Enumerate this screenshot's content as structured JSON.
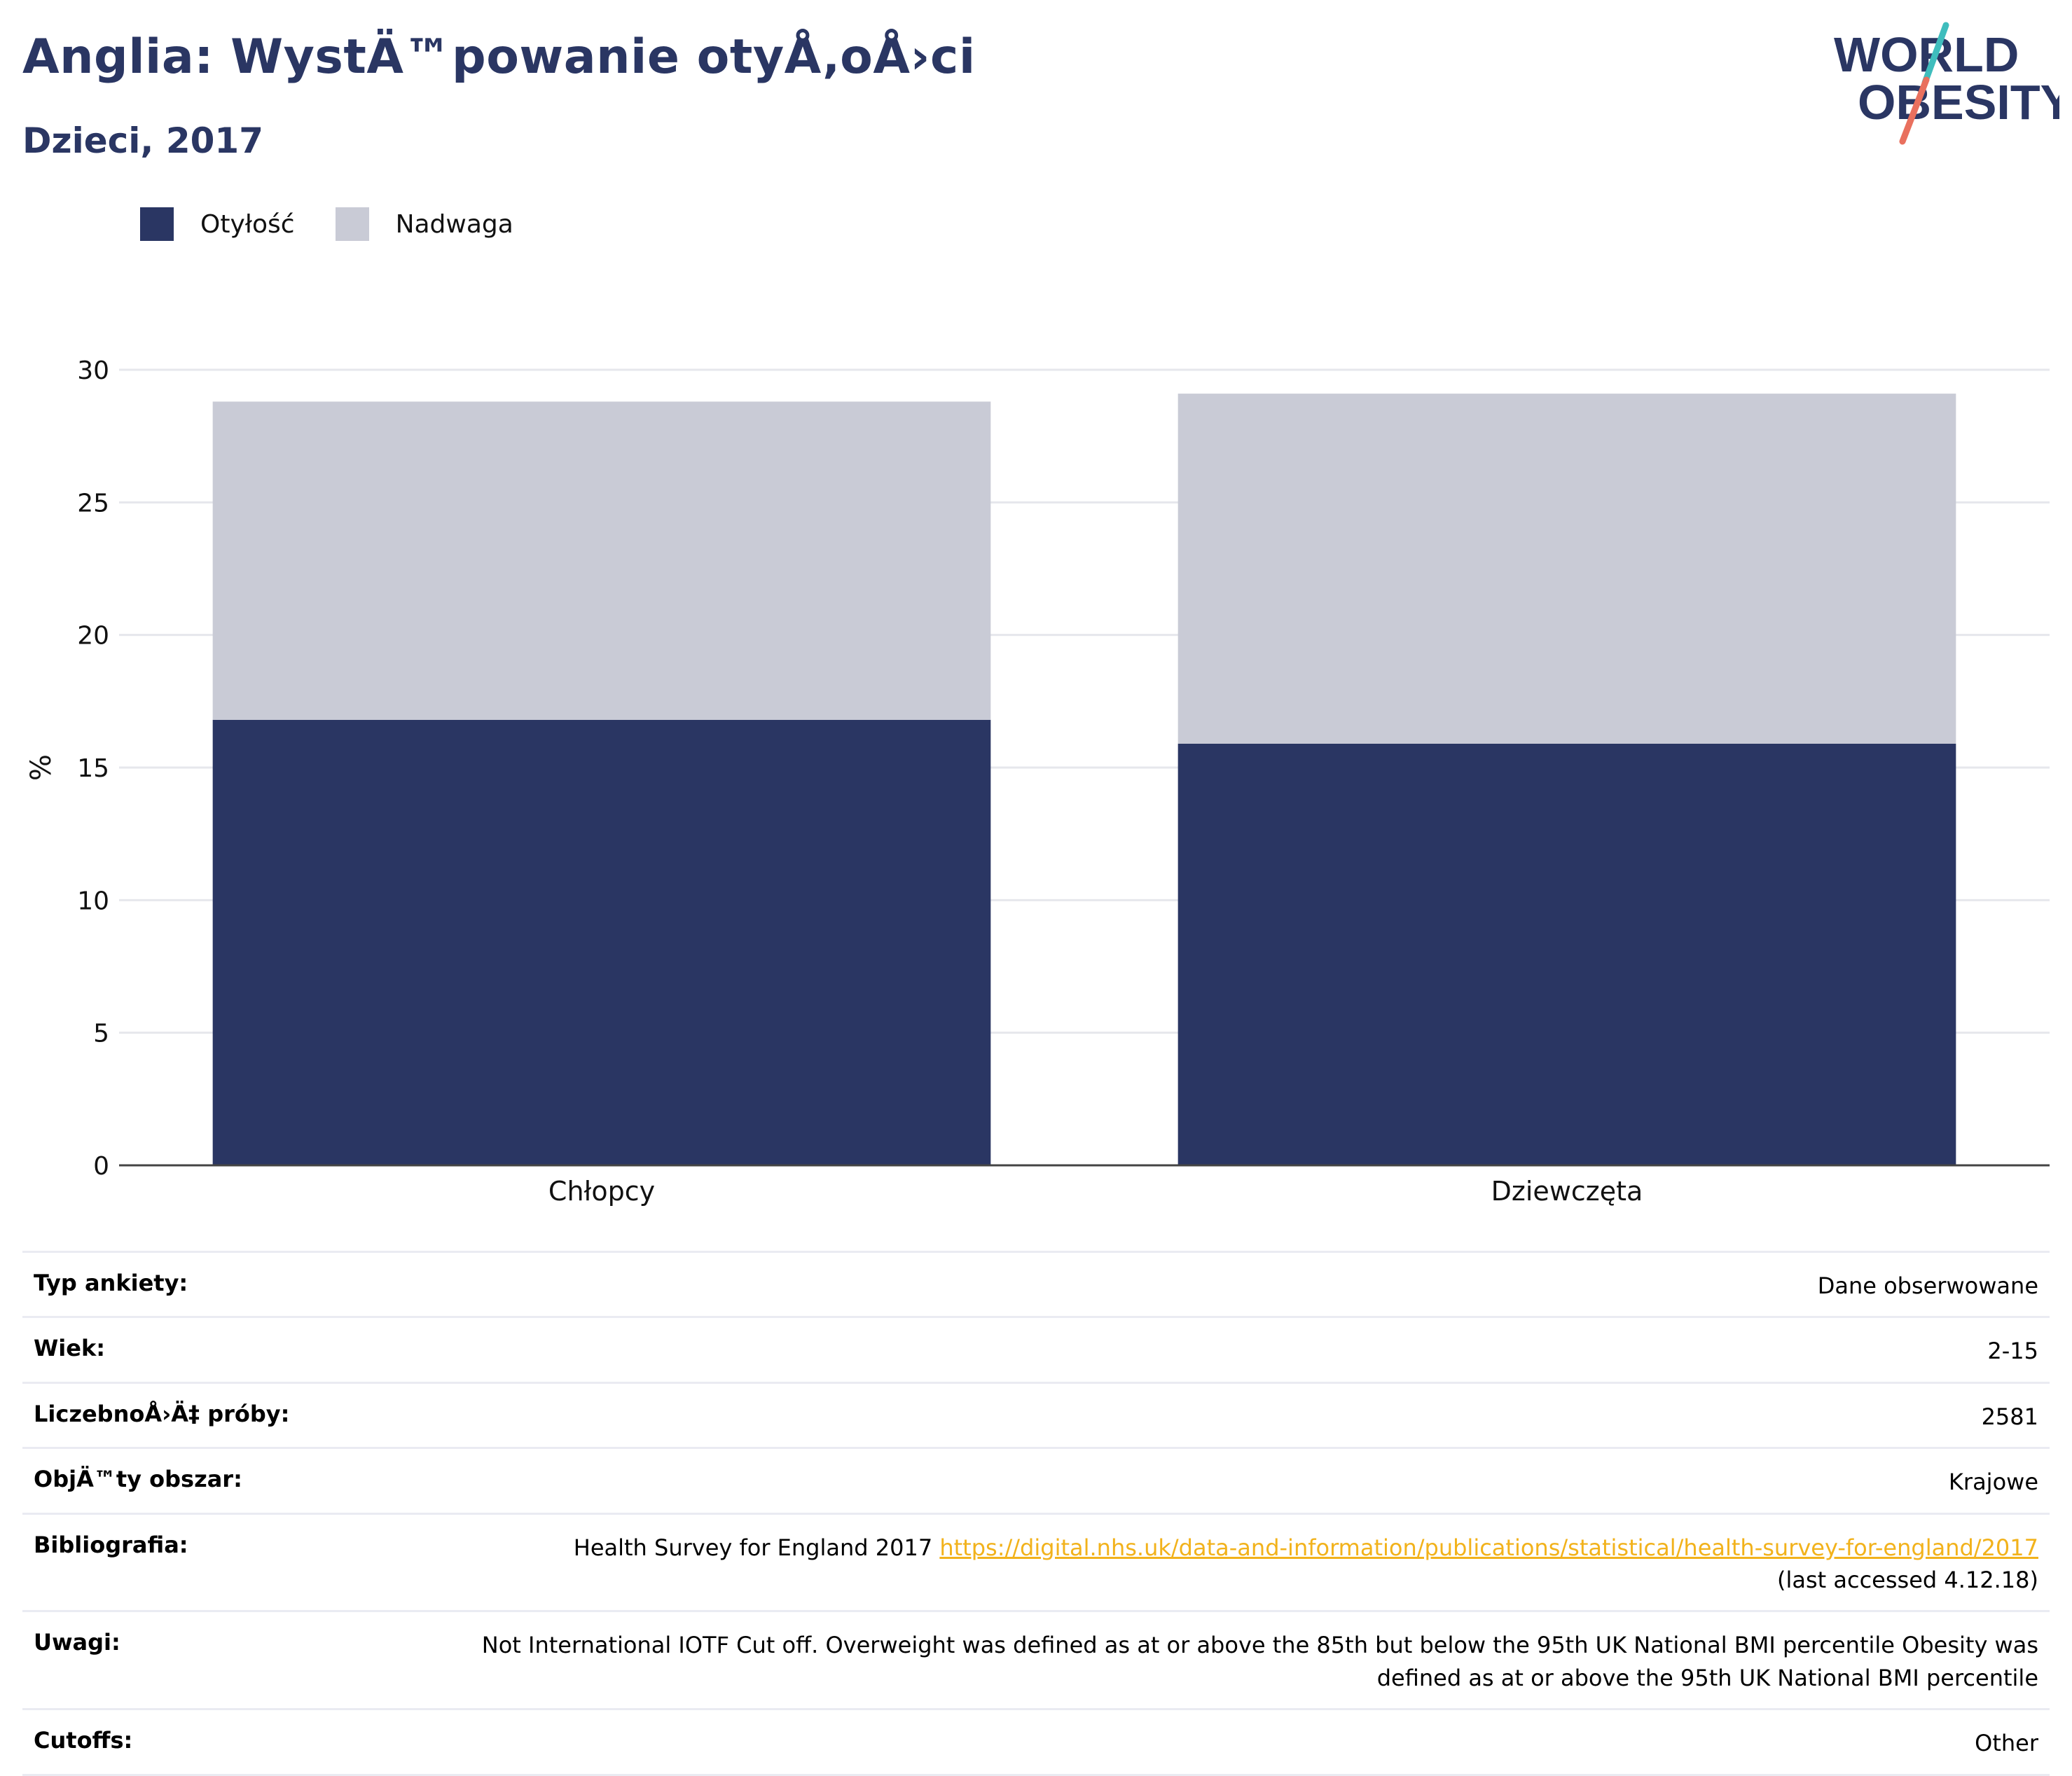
{
  "header": {
    "title": "Anglia: WystÄ™powanie otyÅ‚oÅ›ci",
    "subtitle": "Dzieci, 2017"
  },
  "logo": {
    "line1": "WORLD",
    "line2": "OBESITY"
  },
  "legend": [
    {
      "label": "Otyłość",
      "color": "#2a3663"
    },
    {
      "label": "Nadwaga",
      "color": "#c9cbd6"
    }
  ],
  "chart_data": {
    "type": "bar",
    "stacked": true,
    "categories": [
      "Chłopcy",
      "Dziewczęta"
    ],
    "series": [
      {
        "name": "Otyłość",
        "color": "#2a3663",
        "values": [
          16.8,
          15.9
        ]
      },
      {
        "name": "Nadwaga",
        "color": "#c9cbd6",
        "values": [
          12.0,
          13.2
        ]
      }
    ],
    "ylabel": "%",
    "ylim": [
      0,
      30
    ],
    "yticks": [
      0,
      5,
      10,
      15,
      20,
      25,
      30
    ],
    "grid": true,
    "legend_position": "top-left"
  },
  "meta": [
    {
      "label": "Typ ankiety:",
      "value": "Dane obserwowane"
    },
    {
      "label": "Wiek:",
      "value": "2-15"
    },
    {
      "label": "LiczebnoÅ›Ä‡ próby:",
      "value": "2581"
    },
    {
      "label": "ObjÄ™ty obszar:",
      "value": "Krajowe"
    },
    {
      "label": "Bibliografia:",
      "value": "Health Survey for England 2017",
      "link": "https://digital.nhs.uk/data-and-information/publications/statistical/health-survey-for-england/2017",
      "note": "(last accessed 4.12.18)"
    },
    {
      "label": "Uwagi:",
      "value": "Not International IOTF Cut off. Overweight was defined as at or above the 85th but below the 95th UK National BMI percentile Obesity was defined as at or above the 95th UK National BMI percentile"
    },
    {
      "label": "Cutoffs:",
      "value": "Other"
    }
  ]
}
